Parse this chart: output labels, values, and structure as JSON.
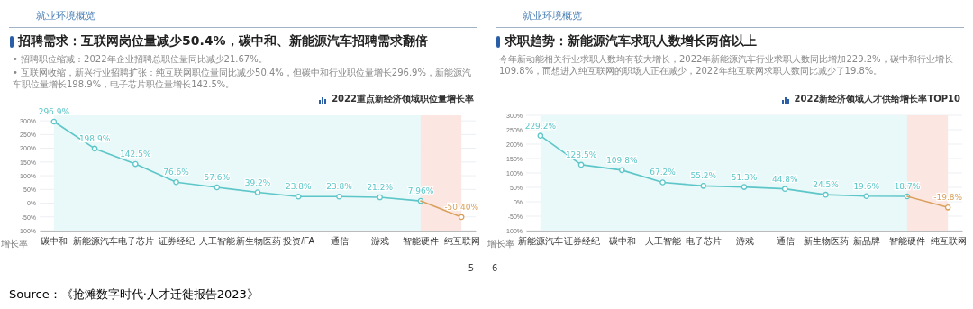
{
  "chart_data": [
    {
      "type": "line",
      "title": "招聘需求：互联网岗位量减少50.4%，碳中和、新能源汽车招聘需求翻倍",
      "subtitle": "2022重点新经济领域职位量增长率",
      "ylabel": "增长率",
      "annotations": [
        "就业环境概览",
        "• 招聘职位缩减：2022年企业招聘总职位量同比减少21.67%。",
        "• 互联网收缩，新兴行业招聘扩张：纯互联网职位量同比减少50.4%，但碳中和行业职位量增长296.9%，新能源汽车职位量增长198.9%，电子芯片职位量增长142.5%。",
        "5",
        "Source：《抢滩数字时代·人才迁徙报告2023》"
      ],
      "categories": [
        "碳中和",
        "新能源汽车",
        "电子芯片",
        "证券经纪",
        "人工智能",
        "新生物医药",
        "投资/FA",
        "通信",
        "游戏",
        "智能硬件",
        "纯互联网"
      ],
      "series": [
        {
          "color": "#5cc6c8",
          "values": [
            296.9,
            198.9,
            142.5,
            76.6,
            57.6,
            39.2,
            23.8,
            23.8,
            21.2,
            7.96,
            null
          ],
          "value_labels": [
            "296.9%",
            "198.9%",
            "142.5%",
            "76.6%",
            "57.6%",
            "39.2%",
            "23.8%",
            "23.8%",
            "21.2%",
            "7.96%",
            null
          ]
        },
        {
          "color": "#d9a05b",
          "values": [
            null,
            null,
            null,
            null,
            null,
            null,
            null,
            null,
            null,
            7.96,
            -50.4
          ],
          "value_labels": [
            null,
            null,
            null,
            null,
            null,
            null,
            null,
            null,
            null,
            null,
            "-50.40%"
          ]
        }
      ],
      "bands": [
        {
          "axis": "x",
          "from": "碳中和",
          "to": "智能硬件",
          "color": "#e9f8f8"
        },
        {
          "axis": "x",
          "from": "智能硬件",
          "to": "纯互联网",
          "color": "#fbe6e2"
        }
      ],
      "ylim": [
        -100,
        320
      ],
      "yticks": [
        {
          "value": -100,
          "label": "-100%"
        },
        {
          "value": -50,
          "label": "-50%"
        },
        {
          "value": 0,
          "label": "0%"
        },
        {
          "value": 50,
          "label": "50%"
        },
        {
          "value": 100,
          "label": "100%"
        },
        {
          "value": 150,
          "label": "150%"
        },
        {
          "value": 200,
          "label": "200%"
        },
        {
          "value": 250,
          "label": "250%"
        },
        {
          "value": 300,
          "label": "300%"
        }
      ],
      "grid": "y",
      "marker": "circle",
      "line_style": "solid"
    },
    {
      "type": "line",
      "title": "求职趋势：新能源汽车求职人数增长两倍以上",
      "subtitle": "2022新经济领域人才供给增长率TOP10",
      "ylabel": "增长率",
      "annotations": [
        "就业环境概览",
        "今年新动能相关行业求职人数均有较大增长，2022年新能源汽车行业求职人数同比增加229.2%，碳中和行业增长109.8%，而想进入纯互联网的职场人正在减少，2022年纯互联网求职人数同比减少了19.8%。",
        "6"
      ],
      "categories": [
        "新能源汽车",
        "证券经纪",
        "碳中和",
        "人工智能",
        "电子芯片",
        "游戏",
        "通信",
        "新生物医药",
        "新品牌",
        "智能硬件",
        "纯互联网"
      ],
      "series": [
        {
          "color": "#5cc6c8",
          "values": [
            229.2,
            128.5,
            109.8,
            67.2,
            55.2,
            51.3,
            44.8,
            24.5,
            19.6,
            18.7,
            null
          ],
          "value_labels": [
            "229.2%",
            "128.5%",
            "109.8%",
            "67.2%",
            "55.2%",
            "51.3%",
            "44.8%",
            "24.5%",
            "19.6%",
            "18.7%",
            null
          ]
        },
        {
          "color": "#d9a05b",
          "values": [
            null,
            null,
            null,
            null,
            null,
            null,
            null,
            null,
            null,
            18.7,
            -19.8
          ],
          "value_labels": [
            null,
            null,
            null,
            null,
            null,
            null,
            null,
            null,
            null,
            null,
            "-19.8%"
          ]
        }
      ],
      "bands": [
        {
          "axis": "x",
          "from": "新能源汽车",
          "to": "智能硬件",
          "color": "#e9f8f8"
        },
        {
          "axis": "x",
          "from": "智能硬件",
          "to": "纯互联网",
          "color": "#fbe6e2"
        }
      ],
      "ylim": [
        -100,
        300
      ],
      "yticks": [
        {
          "value": -100,
          "label": "-100%"
        },
        {
          "value": -50,
          "label": "-50%"
        },
        {
          "value": 0,
          "label": "0%"
        },
        {
          "value": 50,
          "label": "50%"
        },
        {
          "value": 100,
          "label": "100%"
        },
        {
          "value": 150,
          "label": "150%"
        },
        {
          "value": 200,
          "label": "200%"
        },
        {
          "value": 250,
          "label": "250%"
        },
        {
          "value": 300,
          "label": "300%"
        }
      ],
      "grid": "y",
      "marker": "circle",
      "line_style": "solid"
    }
  ]
}
